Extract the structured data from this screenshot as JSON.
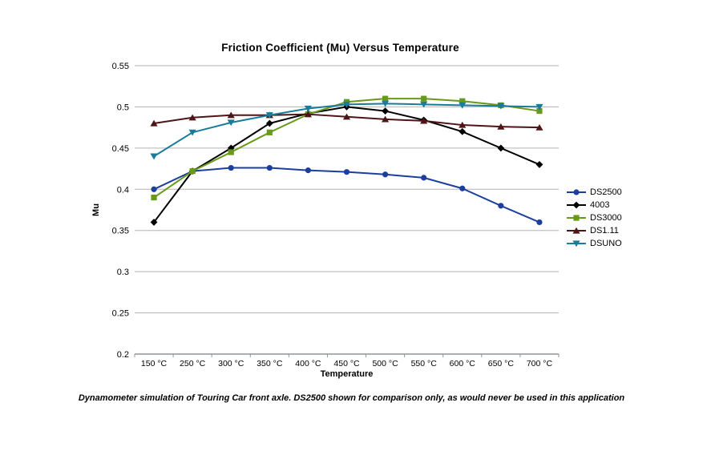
{
  "page": {
    "caption": "Dynamometer simulation of Touring Car front axle. DS2500 shown for comparison only, as would never be used in this application"
  },
  "colors": {
    "gridline": "#b3b3b3",
    "axis": "#8f9399",
    "text": "#000000"
  },
  "chart_data": {
    "type": "line",
    "title": "Friction Coefficient (Mu) Versus Temperature",
    "xlabel": "Temperature",
    "ylabel": "Mu",
    "grid": true,
    "legend_position": "right",
    "ylim": [
      0.2,
      0.55
    ],
    "categories": [
      "150 °C",
      "250 °C",
      "300 °C",
      "350 °C",
      "400 °C",
      "450 °C",
      "500 °C",
      "550 °C",
      "600 °C",
      "650 °C",
      "700 °C"
    ],
    "y_ticks": [
      {
        "value": 0.55,
        "label": "0.55"
      },
      {
        "value": 0.5,
        "label": "0.5"
      },
      {
        "value": 0.45,
        "label": "0.45"
      },
      {
        "value": 0.4,
        "label": "0.4"
      },
      {
        "value": 0.35,
        "label": "0.35"
      },
      {
        "value": 0.3,
        "label": "0.3"
      },
      {
        "value": 0.25,
        "label": "0.25"
      },
      {
        "value": 0.2,
        "label": "0.2"
      }
    ],
    "series": [
      {
        "name": "DS2500",
        "color": "#1c3f9e",
        "marker": "circle",
        "values": [
          0.4,
          0.422,
          0.426,
          0.426,
          0.423,
          0.421,
          0.418,
          0.414,
          0.401,
          0.38,
          0.36
        ]
      },
      {
        "name": "4003",
        "color": "#000000",
        "marker": "diamond",
        "values": [
          0.36,
          0.422,
          0.45,
          0.48,
          0.492,
          0.5,
          0.495,
          0.484,
          0.47,
          0.45,
          0.43
        ]
      },
      {
        "name": "DS3000",
        "color": "#68991a",
        "marker": "square",
        "values": [
          0.39,
          0.422,
          0.445,
          0.469,
          0.491,
          0.506,
          0.51,
          0.51,
          0.507,
          0.502,
          0.495
        ]
      },
      {
        "name": "DS1.11",
        "color": "#4d1517",
        "marker": "triangle-up",
        "values": [
          0.48,
          0.487,
          0.49,
          0.49,
          0.491,
          0.488,
          0.485,
          0.483,
          0.478,
          0.476,
          0.475
        ]
      },
      {
        "name": "DSUNO",
        "color": "#1a7b9b",
        "marker": "triangle-down",
        "values": [
          0.44,
          0.469,
          0.481,
          0.49,
          0.498,
          0.503,
          0.504,
          0.503,
          0.502,
          0.501,
          0.5
        ]
      }
    ]
  }
}
